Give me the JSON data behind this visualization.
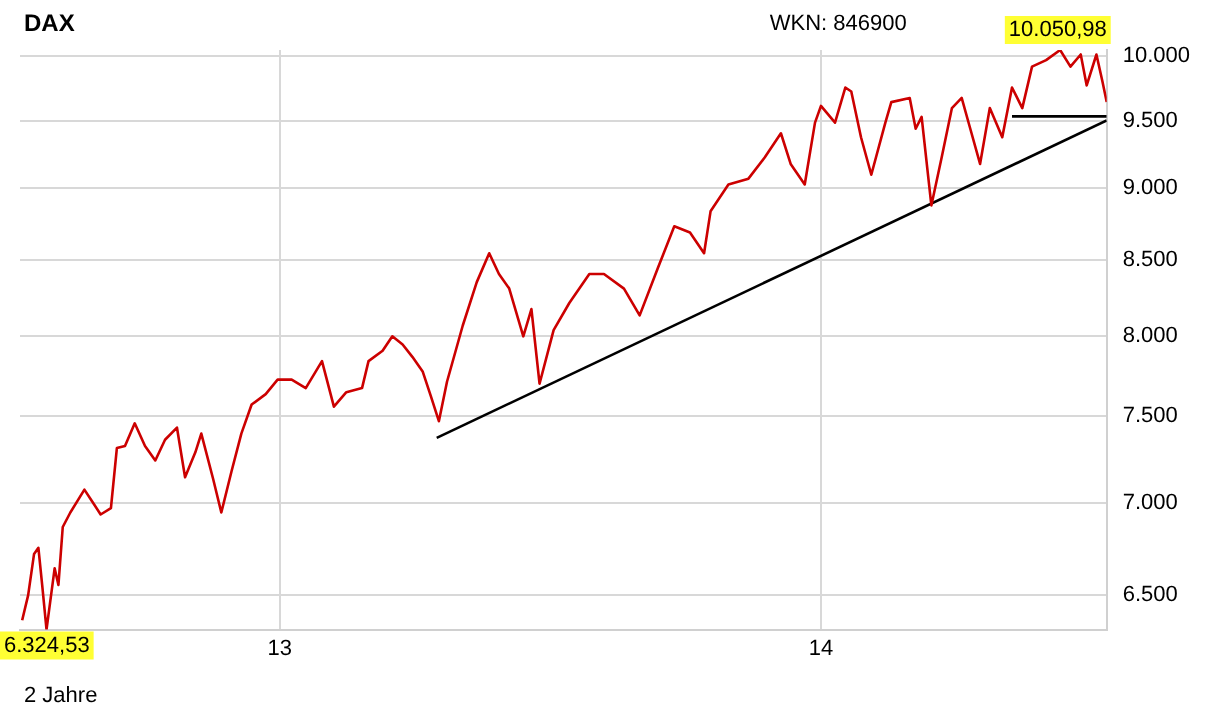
{
  "chart_data": {
    "type": "line",
    "title": "DAX",
    "annotations": [
      "WKN: 846900",
      "2 Jahre",
      {
        "text": "10.050,98",
        "x": 2014.442,
        "y": 10050.98
      },
      {
        "text": "6.324,53",
        "x": 2012.569,
        "y": 6324.53
      }
    ],
    "xlim": [
      2012.52,
      2014.528
    ],
    "xticks": [
      {
        "value": 2013,
        "label": "13"
      },
      {
        "value": 2014,
        "label": "14"
      }
    ],
    "ylim": [
      6324.53,
      10050.98
    ],
    "yticks": [
      {
        "value": 6500,
        "label": "6.500"
      },
      {
        "value": 7000,
        "label": "7.000"
      },
      {
        "value": 7500,
        "label": "7.500"
      },
      {
        "value": 8000,
        "label": "8.000"
      },
      {
        "value": 8500,
        "label": "8.500"
      },
      {
        "value": 9000,
        "label": "9.000"
      },
      {
        "value": 9500,
        "label": "9.500"
      },
      {
        "value": 10000,
        "label": "10.000"
      }
    ],
    "log": "y",
    "grid": true,
    "legend": false,
    "marker": "none",
    "line_style": "solid",
    "series": [
      {
        "color": "#cc0000",
        "x": [
          2012.524,
          2012.535,
          2012.546,
          2012.554,
          2012.561,
          2012.569,
          2012.584,
          2012.591,
          2012.599,
          2012.613,
          2012.639,
          2012.654,
          2012.669,
          2012.688,
          2012.699,
          2012.714,
          2012.732,
          2012.751,
          2012.77,
          2012.788,
          2012.81,
          2012.825,
          2012.844,
          2012.855,
          2012.877,
          2012.892,
          2012.911,
          2012.929,
          2012.948,
          2012.974,
          2012.996,
          2013.022,
          2013.048,
          2013.078,
          2013.1,
          2013.123,
          2013.152,
          2013.164,
          2013.19,
          2013.208,
          2013.227,
          2013.245,
          2013.264,
          2013.279,
          2013.294,
          2013.309,
          2013.338,
          2013.364,
          2013.387,
          2013.405,
          2013.424,
          2013.45,
          2013.465,
          2013.48,
          2013.506,
          2013.535,
          2013.572,
          2013.599,
          2013.636,
          2013.665,
          2013.699,
          2013.729,
          2013.758,
          2013.784,
          2013.796,
          2013.829,
          2013.866,
          2013.896,
          2013.926,
          2013.944,
          2013.97,
          2013.989,
          2014.0,
          2014.026,
          2014.045,
          2014.056,
          2014.074,
          2014.093,
          2014.119,
          2014.13,
          2014.164,
          2014.175,
          2014.186,
          2014.204,
          2014.223,
          2014.242,
          2014.26,
          2014.275,
          2014.294,
          2014.312,
          2014.335,
          2014.353,
          2014.372,
          2014.39,
          2014.416,
          2014.442,
          2014.461,
          2014.48,
          2014.491,
          2014.509,
          2014.52,
          2014.528
        ],
        "values": [
          6372,
          6500,
          6719,
          6752,
          6554,
          6324.53,
          6642,
          6554,
          6865,
          6945,
          7073,
          7004,
          6934,
          6969,
          7312,
          7324,
          7458,
          7324,
          7240,
          7361,
          7433,
          7143,
          7287,
          7397,
          7132,
          6945,
          7179,
          7397,
          7571,
          7634,
          7723,
          7723,
          7671,
          7838,
          7558,
          7646,
          7671,
          7838,
          7903,
          7995,
          7943,
          7865,
          7774,
          7623,
          7471,
          7710,
          8063,
          8349,
          8544,
          8403,
          8306,
          7995,
          8171,
          7698,
          8035,
          8211,
          8403,
          8403,
          8306,
          8130,
          8447,
          8730,
          8687,
          8544,
          8835,
          9027,
          9069,
          9223,
          9404,
          9176,
          9027,
          9484,
          9612,
          9484,
          9754,
          9723,
          9374,
          9097,
          9484,
          9641,
          9673,
          9438,
          9528,
          8877,
          9223,
          9595,
          9673,
          9451,
          9176,
          9595,
          9374,
          9754,
          9595,
          9918,
          9970,
          10050.98,
          9918,
          10015,
          9770,
          10015,
          9803,
          9641
        ]
      },
      {
        "color": "#000000",
        "x": [
          2013.29,
          2014.528
        ],
        "values": [
          7372,
          9500
        ]
      },
      {
        "color": "#000000",
        "x": [
          2014.353,
          2014.528
        ],
        "values": [
          9532,
          9532
        ]
      }
    ]
  }
}
